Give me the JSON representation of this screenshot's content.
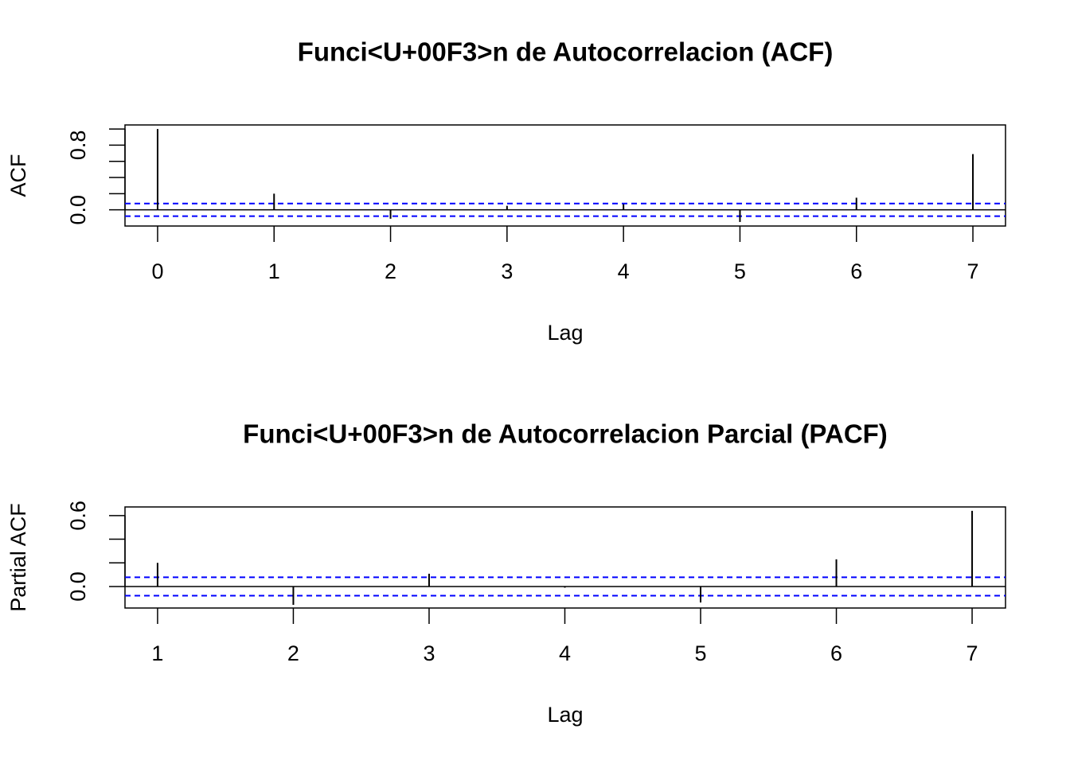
{
  "chart_data": [
    {
      "type": "stem",
      "title": "Funci<U+00F3>n de Autocorrelacion (ACF)",
      "xlabel": "Lag",
      "ylabel": "ACF",
      "x": [
        0,
        1,
        2,
        3,
        4,
        5,
        6,
        7
      ],
      "values": [
        1.0,
        0.2,
        -0.11,
        0.05,
        0.07,
        -0.15,
        0.15,
        0.69
      ],
      "color": "#000000",
      "xlim": [
        -0.28,
        7.28
      ],
      "ylim": [
        -0.2,
        1.05
      ],
      "xticks": [
        0,
        1,
        2,
        3,
        4,
        5,
        6,
        7
      ],
      "yticks": [
        {
          "value": 0,
          "label": "0.0"
        },
        {
          "value": 0.8,
          "label": "0.8"
        }
      ],
      "yminor_ticks": [
        0.2,
        0.4,
        0.6,
        1.0
      ],
      "ci": [
        0.078,
        -0.078
      ],
      "ci_color": "#0000ff"
    },
    {
      "type": "stem",
      "title": "Funci<U+00F3>n de Autocorrelacion Parcial (PACF)",
      "xlabel": "Lag",
      "ylabel": "Partial ACF",
      "x": [
        1,
        2,
        3,
        4,
        5,
        6,
        7
      ],
      "values": [
        0.2,
        -0.155,
        0.108,
        -0.01,
        -0.135,
        0.23,
        0.64
      ],
      "color": "#000000",
      "xlim": [
        0.76,
        7.246
      ],
      "ylim": [
        -0.182,
        0.673
      ],
      "xticks": [
        1,
        2,
        3,
        4,
        5,
        6,
        7
      ],
      "yticks": [
        {
          "value": 0,
          "label": "0.0"
        },
        {
          "value": 0.6,
          "label": "0.6"
        }
      ],
      "yminor_ticks": [
        0.2,
        0.4
      ],
      "ci": [
        0.078,
        -0.078
      ],
      "ci_color": "#0000ff"
    }
  ]
}
